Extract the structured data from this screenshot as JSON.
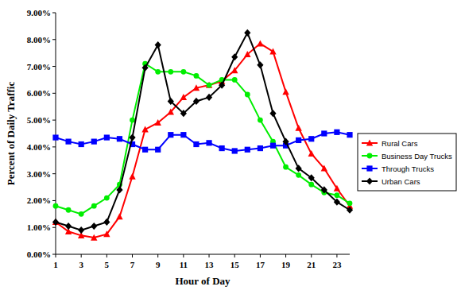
{
  "chart_data": {
    "type": "line",
    "x_label": "Hour of Day",
    "y_label": "Percent of Daily Traffic",
    "x": [
      1,
      2,
      3,
      4,
      5,
      6,
      7,
      8,
      9,
      10,
      11,
      12,
      13,
      14,
      15,
      16,
      17,
      18,
      19,
      20,
      21,
      22,
      23,
      24
    ],
    "xlim": [
      1,
      24
    ],
    "xticks": [
      1,
      3,
      5,
      7,
      9,
      11,
      13,
      15,
      17,
      19,
      21,
      23
    ],
    "ylim": [
      0,
      9
    ],
    "yticks": [
      {
        "value": 0,
        "label": "0.00%"
      },
      {
        "value": 1,
        "label": "1.00%"
      },
      {
        "value": 2,
        "label": "2.00%"
      },
      {
        "value": 3,
        "label": "3.00%"
      },
      {
        "value": 4,
        "label": "4.00%"
      },
      {
        "value": 5,
        "label": "5.00%"
      },
      {
        "value": 6,
        "label": "6.00%"
      },
      {
        "value": 7,
        "label": "7.00%"
      },
      {
        "value": 8,
        "label": "8.00%"
      },
      {
        "value": 9,
        "label": "9.00%"
      }
    ],
    "grid": false,
    "legend": "right",
    "series": [
      {
        "name": "Rural Cars",
        "color": "#ff0000",
        "marker": "triangle",
        "values": [
          1.2,
          0.85,
          0.7,
          0.62,
          0.75,
          1.4,
          2.9,
          4.65,
          4.9,
          5.3,
          5.85,
          6.2,
          6.3,
          6.45,
          6.85,
          7.45,
          7.85,
          7.55,
          6.05,
          4.7,
          3.75,
          3.2,
          2.45,
          1.8
        ]
      },
      {
        "name": "Business Day Trucks",
        "color": "#00ee00",
        "marker": "circle",
        "values": [
          1.8,
          1.65,
          1.5,
          1.8,
          2.1,
          2.6,
          5.0,
          7.1,
          6.8,
          6.8,
          6.8,
          6.65,
          6.3,
          6.5,
          6.5,
          5.95,
          5.0,
          4.2,
          3.25,
          2.95,
          2.6,
          2.3,
          2.2,
          1.9
        ]
      },
      {
        "name": "Through Trucks",
        "color": "#0000ff",
        "marker": "square",
        "values": [
          4.35,
          4.2,
          4.1,
          4.2,
          4.35,
          4.3,
          4.1,
          3.9,
          3.9,
          4.45,
          4.45,
          4.1,
          4.15,
          3.95,
          3.85,
          3.9,
          3.95,
          4.05,
          4.05,
          4.25,
          4.3,
          4.5,
          4.55,
          4.45
        ]
      },
      {
        "name": "Urban Cars",
        "color": "#000000",
        "marker": "diamond",
        "values": [
          1.2,
          1.05,
          0.9,
          1.05,
          1.2,
          2.4,
          4.35,
          6.95,
          7.8,
          5.7,
          5.25,
          5.7,
          5.85,
          6.3,
          7.35,
          8.25,
          7.05,
          5.25,
          4.2,
          3.2,
          2.85,
          2.4,
          1.95,
          1.65
        ]
      }
    ]
  }
}
